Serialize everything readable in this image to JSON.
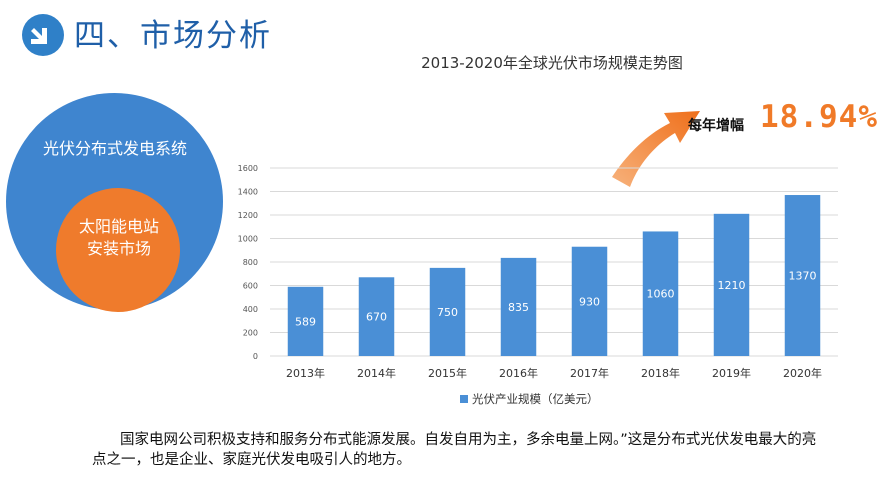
{
  "header": {
    "title": "四、市场分析",
    "icon": "arrow-down-right-icon",
    "accent_color": "#2f80c8"
  },
  "chart_title": "2013-2020年全球光伏市场规模走势图",
  "circles": {
    "outer_label": "光伏分布式发电系统",
    "outer_color": "#3f85cf",
    "inner_label": "太阳能电站安装市场",
    "inner_color": "#ef7b2c"
  },
  "growth": {
    "label": "每年增幅",
    "value": "18.94%",
    "arrow_color": "#f07a28"
  },
  "chart_data": {
    "type": "bar",
    "categories": [
      "2013年",
      "2014年",
      "2015年",
      "2016年",
      "2017年",
      "2018年",
      "2019年",
      "2020年"
    ],
    "series": [
      {
        "name": "光伏产业规模（亿美元）",
        "values": [
          589,
          670,
          750,
          835,
          930,
          1060,
          1210,
          1370
        ]
      }
    ],
    "ylim": [
      0,
      1600
    ],
    "yticks": [
      0,
      200,
      400,
      600,
      800,
      1000,
      1200,
      1400,
      1600
    ],
    "grid": true,
    "legend": "bottom",
    "bar_color": "#4a8fd6"
  },
  "note": "国家电网公司积极支持和服务分布式能源发展。自发自用为主，多余电量上网。”这是分布式光伏发电最大的亮点之一，也是企业、家庭光伏发电吸引人的地方。"
}
